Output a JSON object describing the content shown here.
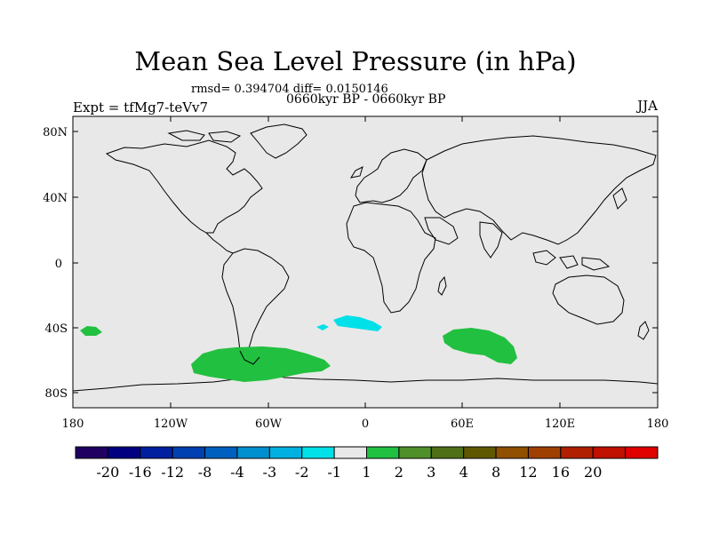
{
  "title": "Mean Sea Level Pressure (in hPa)",
  "stats": "rmsd= 0.394704  diff= 0.0150146",
  "period": "0660kyr BP - 0660kyr BP",
  "experiment": "Expt = tfMg7-teVv7",
  "season": "JJA",
  "lat_labels": [
    "80N",
    "40N",
    "0",
    "40S",
    "80S"
  ],
  "lon_labels": [
    "180",
    "120W",
    "60W",
    "0",
    "60E",
    "120E",
    "180"
  ],
  "colorbar": {
    "colors": [
      "#200060",
      "#000080",
      "#0020a0",
      "#0040b0",
      "#0060c0",
      "#0090d0",
      "#00b0e0",
      "#00e0e8",
      "#e8e8e8",
      "#20c040",
      "#50902a",
      "#507018",
      "#605800",
      "#905000",
      "#a04000",
      "#b02000",
      "#c01000",
      "#e00000"
    ],
    "labels": [
      "-20",
      "-16",
      "-12",
      "-8",
      "-4",
      "-3",
      "-2",
      "-1",
      "1",
      "2",
      "3",
      "4",
      "8",
      "12",
      "16",
      "20"
    ]
  },
  "map_colors": {
    "ocean": "#e8e8e8",
    "coast": "#000000",
    "positive": "#22c040",
    "negative": "#00e0e8"
  }
}
